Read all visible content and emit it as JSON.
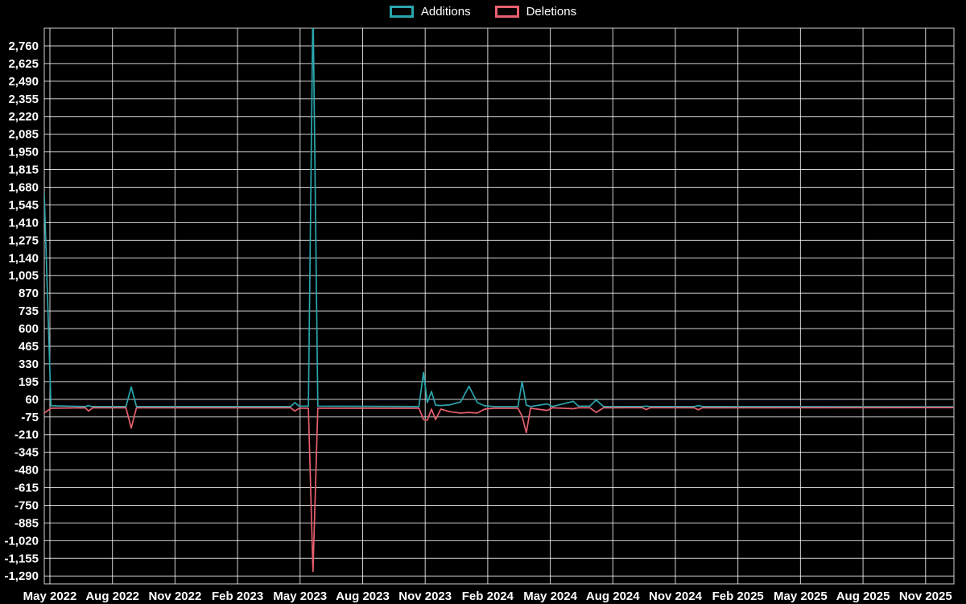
{
  "colors": {
    "background": "#000000",
    "grid": "rgba(255,255,255,0.82)",
    "text": "#ffffff",
    "additions": "#2aa6ad",
    "deletions": "#e85f6e"
  },
  "chart_data": {
    "type": "line",
    "title": "",
    "xlabel": "",
    "ylabel": "",
    "grid": true,
    "legend_position": "top-center",
    "x_unit": "months since May 2022",
    "xlim": [
      -0.27,
      43.36
    ],
    "ylim": [
      -1350,
      2895
    ],
    "y_ticks": [
      2760,
      2625,
      2490,
      2355,
      2220,
      2085,
      1950,
      1815,
      1680,
      1545,
      1410,
      1275,
      1140,
      1005,
      870,
      735,
      600,
      465,
      330,
      195,
      60,
      -75,
      -210,
      -345,
      -480,
      -615,
      -750,
      -885,
      -1020,
      -1155,
      -1290
    ],
    "x_ticks": [
      {
        "pos": 0,
        "label": "May 2022"
      },
      {
        "pos": 3,
        "label": "Aug 2022"
      },
      {
        "pos": 6,
        "label": "Nov 2022"
      },
      {
        "pos": 9,
        "label": "Feb 2023"
      },
      {
        "pos": 12,
        "label": "May 2023"
      },
      {
        "pos": 15,
        "label": "Aug 2023"
      },
      {
        "pos": 18,
        "label": "Nov 2023"
      },
      {
        "pos": 21,
        "label": "Feb 2024"
      },
      {
        "pos": 24,
        "label": "May 2024"
      },
      {
        "pos": 27,
        "label": "Aug 2024"
      },
      {
        "pos": 30,
        "label": "Nov 2024"
      },
      {
        "pos": 33,
        "label": "Feb 2025"
      },
      {
        "pos": 36,
        "label": "May 2025"
      },
      {
        "pos": 39,
        "label": "Aug 2025"
      },
      {
        "pos": 42,
        "label": "Nov 2025"
      }
    ],
    "series": [
      {
        "name": "Additions",
        "color": "#2aa6ad",
        "points": [
          [
            -0.27,
            1630
          ],
          [
            0.05,
            10
          ],
          [
            1.7,
            5
          ],
          [
            1.85,
            12
          ],
          [
            2.0,
            5
          ],
          [
            3.65,
            5
          ],
          [
            3.9,
            155
          ],
          [
            4.15,
            5
          ],
          [
            11.55,
            5
          ],
          [
            11.75,
            35
          ],
          [
            11.95,
            8
          ],
          [
            12.4,
            8
          ],
          [
            12.62,
            3100
          ],
          [
            12.85,
            8
          ],
          [
            17.7,
            5
          ],
          [
            17.92,
            265
          ],
          [
            18.1,
            35
          ],
          [
            18.3,
            120
          ],
          [
            18.5,
            15
          ],
          [
            18.75,
            12
          ],
          [
            19.2,
            18
          ],
          [
            19.7,
            40
          ],
          [
            20.1,
            160
          ],
          [
            20.5,
            35
          ],
          [
            20.85,
            10
          ],
          [
            21.3,
            5
          ],
          [
            22.45,
            5
          ],
          [
            22.65,
            195
          ],
          [
            22.85,
            15
          ],
          [
            23.05,
            5
          ],
          [
            23.85,
            25
          ],
          [
            24.1,
            5
          ],
          [
            25.1,
            45
          ],
          [
            25.35,
            8
          ],
          [
            25.9,
            8
          ],
          [
            26.2,
            55
          ],
          [
            26.55,
            5
          ],
          [
            28.4,
            4
          ],
          [
            28.6,
            8
          ],
          [
            28.8,
            4
          ],
          [
            30.9,
            5
          ],
          [
            31.1,
            12
          ],
          [
            31.3,
            5
          ],
          [
            43.36,
            3
          ]
        ]
      },
      {
        "name": "Deletions",
        "color": "#e85f6e",
        "points": [
          [
            -0.27,
            -45
          ],
          [
            0.05,
            -8
          ],
          [
            1.7,
            -5
          ],
          [
            1.85,
            -30
          ],
          [
            2.05,
            -5
          ],
          [
            3.65,
            -5
          ],
          [
            3.9,
            -160
          ],
          [
            4.15,
            -5
          ],
          [
            11.55,
            -5
          ],
          [
            11.75,
            -30
          ],
          [
            11.95,
            -8
          ],
          [
            12.4,
            -8
          ],
          [
            12.62,
            -1255
          ],
          [
            12.85,
            -8
          ],
          [
            17.7,
            -8
          ],
          [
            17.92,
            -95
          ],
          [
            18.1,
            -100
          ],
          [
            18.3,
            -15
          ],
          [
            18.5,
            -95
          ],
          [
            18.75,
            -15
          ],
          [
            19.2,
            -35
          ],
          [
            19.7,
            -45
          ],
          [
            20.1,
            -40
          ],
          [
            20.5,
            -45
          ],
          [
            20.85,
            -15
          ],
          [
            21.3,
            -8
          ],
          [
            22.45,
            -8
          ],
          [
            22.65,
            -70
          ],
          [
            22.85,
            -195
          ],
          [
            23.05,
            -8
          ],
          [
            23.85,
            -25
          ],
          [
            24.1,
            -5
          ],
          [
            25.1,
            -12
          ],
          [
            25.35,
            -5
          ],
          [
            25.9,
            -5
          ],
          [
            26.2,
            -40
          ],
          [
            26.55,
            -5
          ],
          [
            28.4,
            -4
          ],
          [
            28.6,
            -18
          ],
          [
            28.8,
            -4
          ],
          [
            30.9,
            -5
          ],
          [
            31.1,
            -20
          ],
          [
            31.3,
            -5
          ],
          [
            43.36,
            -3
          ]
        ]
      }
    ]
  }
}
